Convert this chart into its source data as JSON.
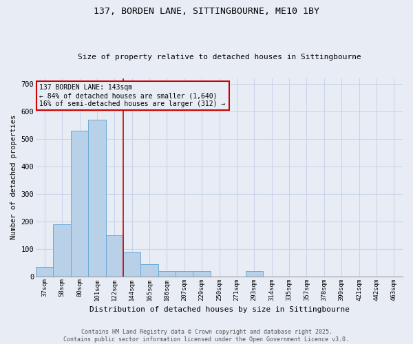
{
  "title1": "137, BORDEN LANE, SITTINGBOURNE, ME10 1BY",
  "title2": "Size of property relative to detached houses in Sittingbourne",
  "xlabel": "Distribution of detached houses by size in Sittingbourne",
  "ylabel": "Number of detached properties",
  "categories": [
    "37sqm",
    "58sqm",
    "80sqm",
    "101sqm",
    "122sqm",
    "144sqm",
    "165sqm",
    "186sqm",
    "207sqm",
    "229sqm",
    "250sqm",
    "271sqm",
    "293sqm",
    "314sqm",
    "335sqm",
    "357sqm",
    "378sqm",
    "399sqm",
    "421sqm",
    "442sqm",
    "463sqm"
  ],
  "values": [
    35,
    190,
    530,
    570,
    150,
    90,
    45,
    20,
    20,
    20,
    0,
    0,
    20,
    0,
    0,
    0,
    0,
    0,
    0,
    0,
    0
  ],
  "bar_color": "#b8d0e8",
  "bar_edge_color": "#6aaad4",
  "grid_color": "#c8d4e8",
  "bg_color": "#e8edf5",
  "annotation_box_color": "#cc0000",
  "annotation_line1": "137 BORDEN LANE: 143sqm",
  "annotation_line2": "← 84% of detached houses are smaller (1,640)",
  "annotation_line3": "16% of semi-detached houses are larger (312) →",
  "property_line_x": 4.5,
  "ylim": [
    0,
    720
  ],
  "yticks": [
    0,
    100,
    200,
    300,
    400,
    500,
    600,
    700
  ],
  "footer1": "Contains HM Land Registry data © Crown copyright and database right 2025.",
  "footer2": "Contains public sector information licensed under the Open Government Licence v3.0."
}
